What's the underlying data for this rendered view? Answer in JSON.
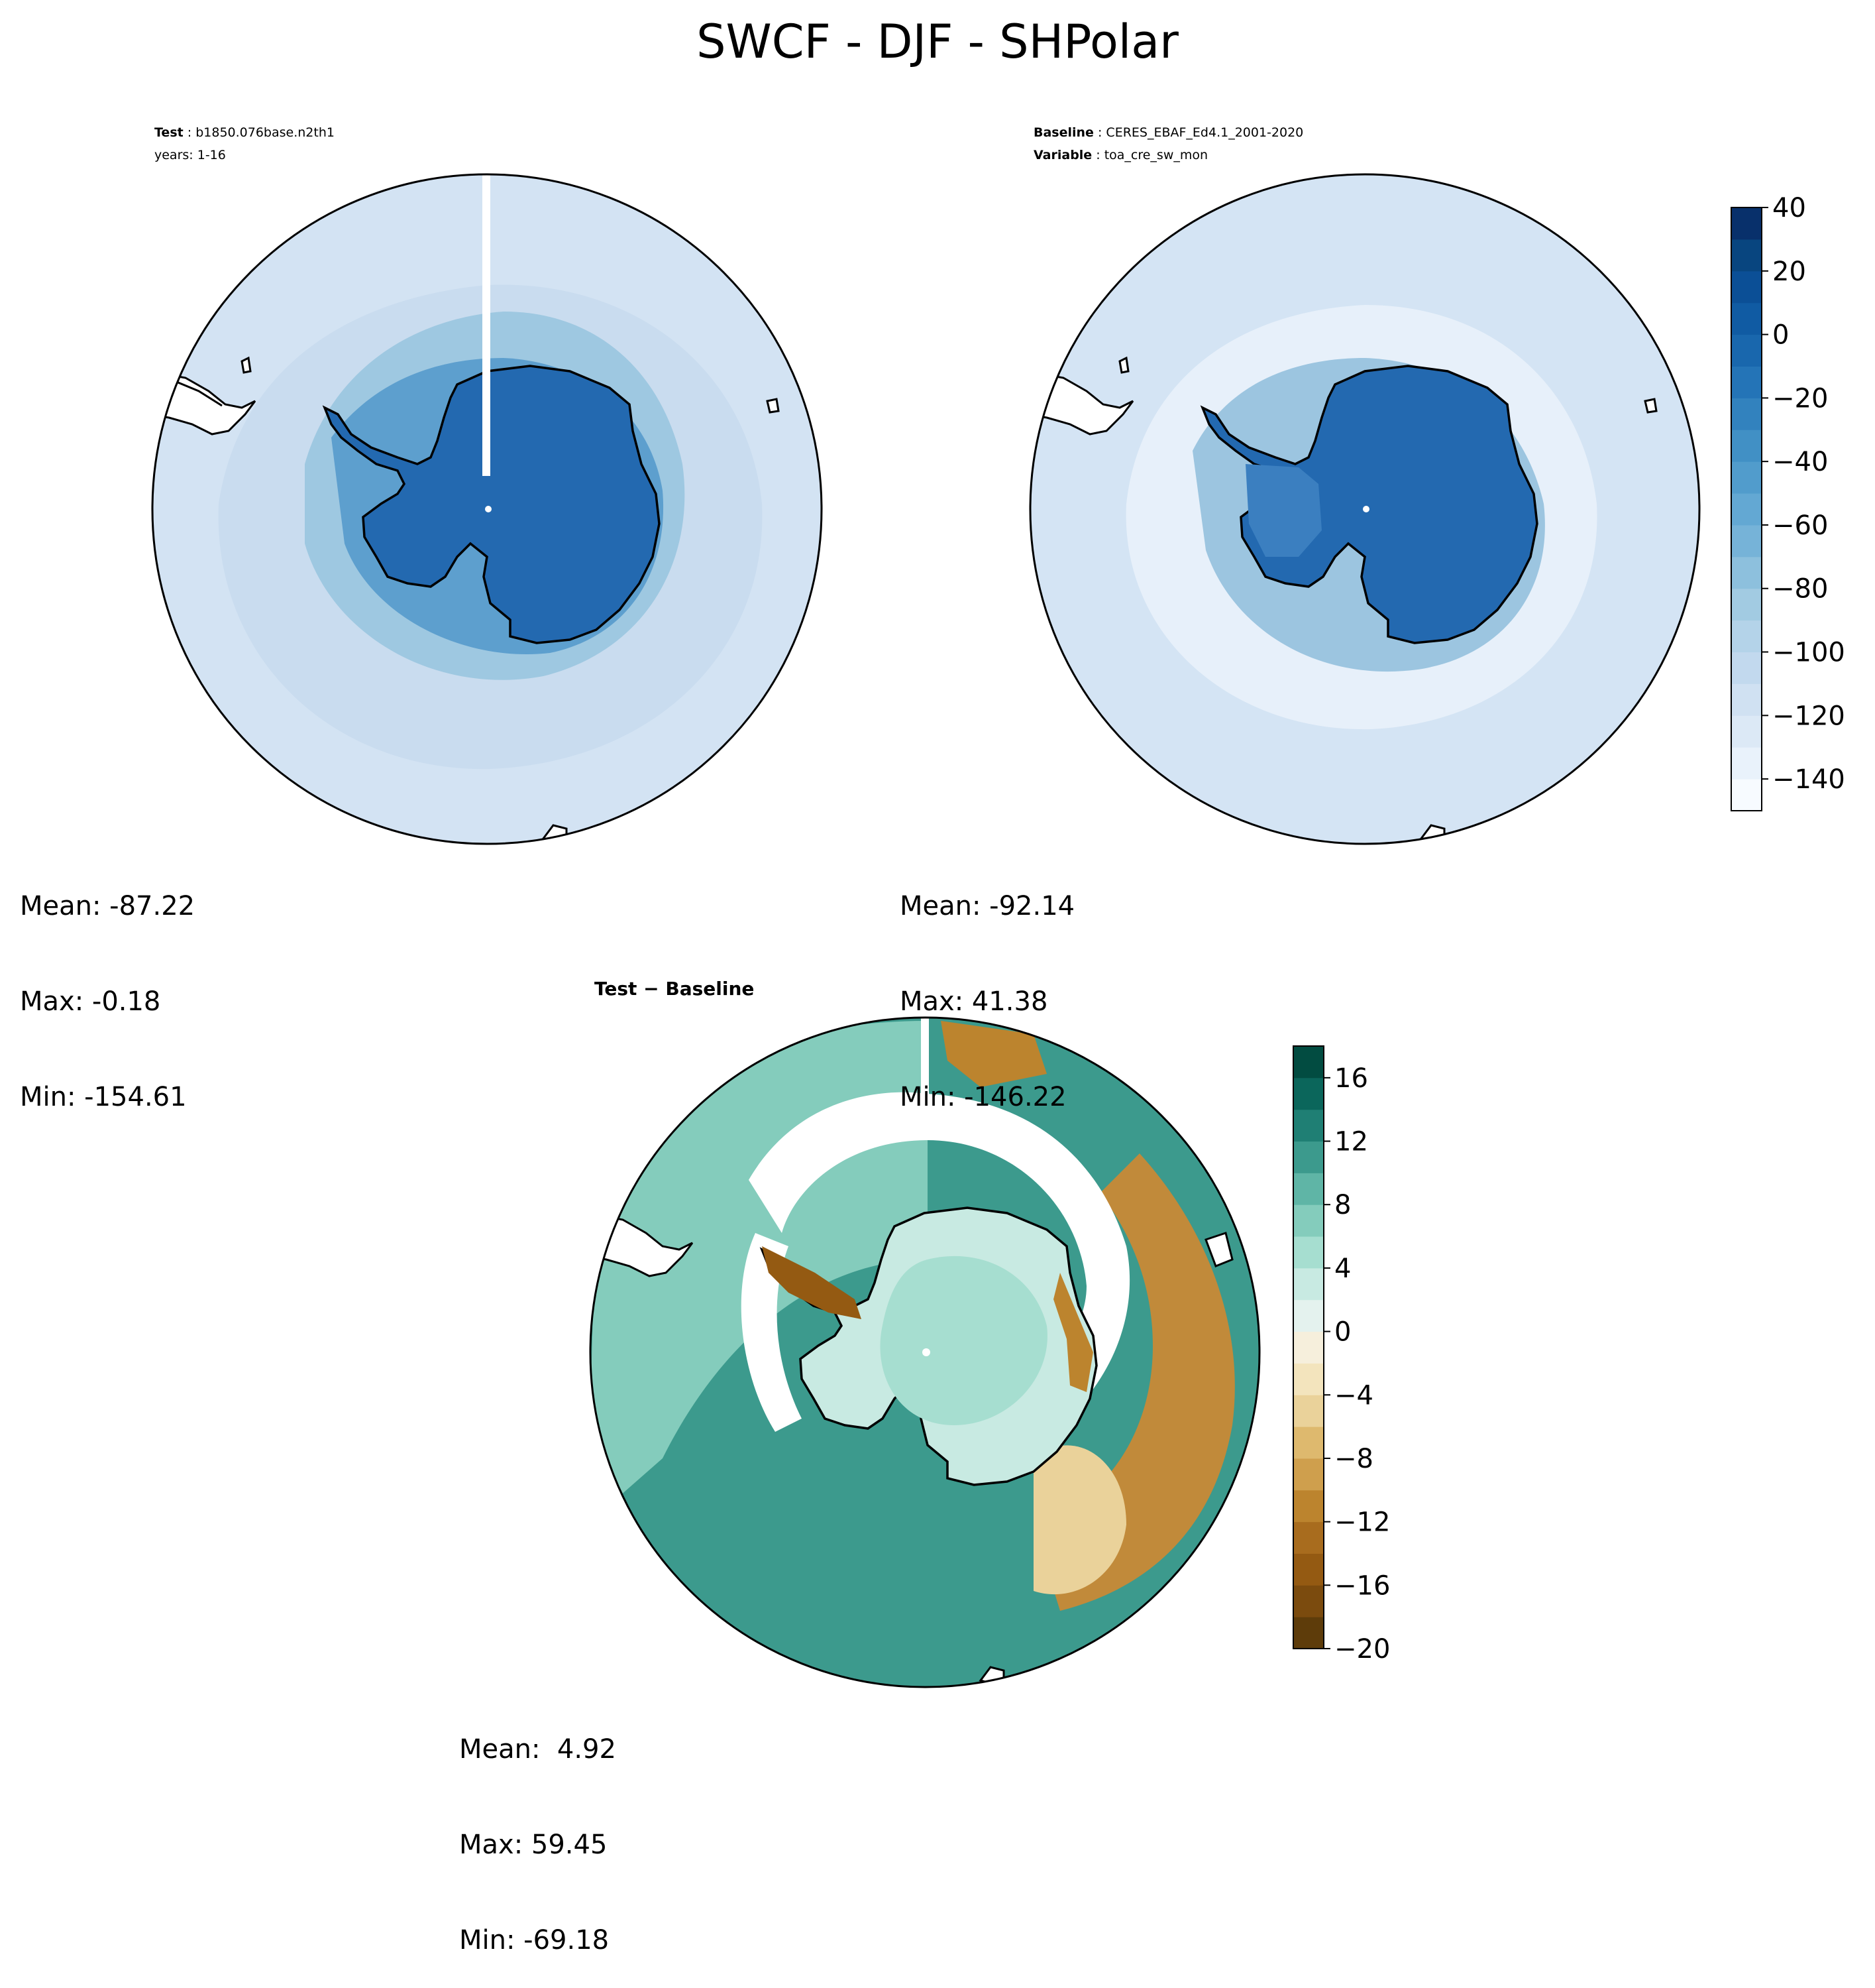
{
  "page": {
    "title": "SWCF - DJF - SHPolar"
  },
  "panels": {
    "test": {
      "label_key": "Test",
      "label_value": "b1850.076base.n2th1",
      "years": "years: 1-16",
      "stats": {
        "mean": "Mean: -87.22",
        "max": "Max: -0.18",
        "min": "Min: -154.61"
      }
    },
    "baseline": {
      "label_key": "Baseline",
      "label_value": "CERES_EBAF_Ed4.1_2001-2020",
      "variable_key": "Variable",
      "variable_value": "toa_cre_sw_mon",
      "stats": {
        "mean": "Mean: -92.14",
        "max": "Max: 41.38",
        "min": "Min: -146.22"
      }
    },
    "diff": {
      "title": "Test − Baseline",
      "stats": {
        "mean": "Mean:  4.92",
        "max": "Max: 59.45",
        "min": "Min: -69.18"
      }
    }
  },
  "chart_data": [
    {
      "type": "heatmap",
      "projection": "south-polar-stereographic",
      "panel": "test",
      "colormap": "Blues",
      "mean": -87.22,
      "max": -0.18,
      "min": -154.61
    },
    {
      "type": "heatmap",
      "projection": "south-polar-stereographic",
      "panel": "baseline",
      "colormap": "Blues",
      "mean": -92.14,
      "max": 41.38,
      "min": -146.22,
      "colorbar": {
        "range": [
          -150,
          40
        ],
        "levels": [
          -150,
          -140,
          -130,
          -120,
          -110,
          -100,
          -90,
          -80,
          -70,
          -60,
          -50,
          -40,
          -30,
          -20,
          -10,
          0,
          10,
          20,
          30,
          40
        ],
        "ticks": [
          40,
          20,
          0,
          -20,
          -40,
          -60,
          -80,
          -100,
          -120,
          -140
        ],
        "tick_labels": [
          "40",
          "20",
          "0",
          "−20",
          "−40",
          "−60",
          "−80",
          "−100",
          "−120",
          "−140"
        ],
        "colors": [
          "#f7fbff",
          "#e9f2fb",
          "#dce9f6",
          "#d0e1f2",
          "#c2d9ee",
          "#b4d3e9",
          "#a2cbe2",
          "#8dc0dd",
          "#76b3d8",
          "#63a8d3",
          "#519ccc",
          "#4190c5",
          "#3282be",
          "#2474b7",
          "#1967ad",
          "#105ba3",
          "#0b4f96",
          "#08457f",
          "#08306b"
        ]
      }
    },
    {
      "type": "heatmap",
      "projection": "south-polar-stereographic",
      "panel": "diff",
      "colormap": "BrBG",
      "mean": 4.92,
      "max": 59.45,
      "min": -69.18,
      "colorbar": {
        "range": [
          -20,
          18
        ],
        "levels": [
          -20,
          -18,
          -16,
          -14,
          -12,
          -10,
          -8,
          -6,
          -4,
          -2,
          0,
          2,
          4,
          6,
          8,
          10,
          12,
          14,
          16,
          18
        ],
        "ticks": [
          16,
          12,
          8,
          4,
          0,
          -4,
          -8,
          -12,
          -16,
          -20
        ],
        "tick_labels": [
          "16",
          "12",
          "8",
          "4",
          "0",
          "−4",
          "−8",
          "−12",
          "−16",
          "−20"
        ],
        "colors": [
          "#5e3c0a",
          "#7b4b0e",
          "#945a12",
          "#a86c1e",
          "#bc842e",
          "#cf9f4d",
          "#deb96e",
          "#ead29a",
          "#f3e4bd",
          "#f6efdc",
          "#e4f2ee",
          "#c8eae2",
          "#a6ded0",
          "#84ccbc",
          "#5fb5a6",
          "#3c9a8d",
          "#1f7f74",
          "#0b665b",
          "#024c41"
        ]
      }
    }
  ]
}
